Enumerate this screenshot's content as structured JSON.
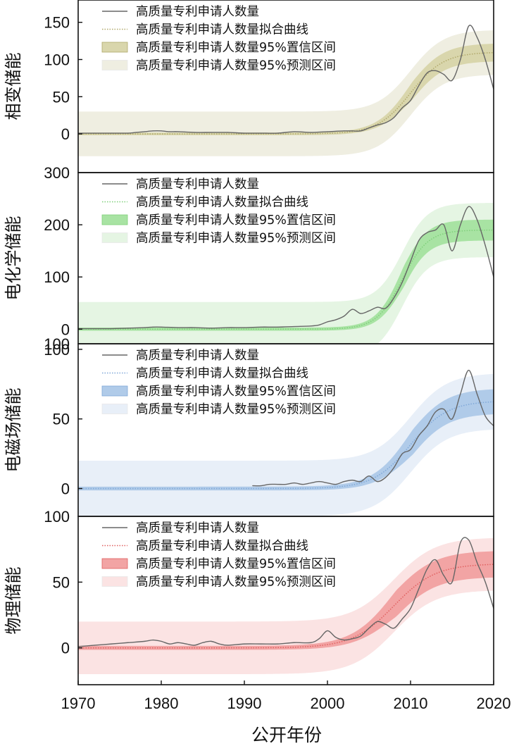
{
  "figure": {
    "xlabel": "公开年份",
    "x_ticks": [
      1970,
      1980,
      1990,
      2000,
      2010,
      2020
    ],
    "xlim": [
      1970,
      2020
    ]
  },
  "legend_labels": [
    "高质量专利申请人数量",
    "高质量专利申请人数量拟合曲线",
    "高质量专利申请人数量95%置信区间",
    "高质量专利申请人数量95%预测区间"
  ],
  "chart_data": [
    {
      "type": "line",
      "ylabel": "相变储能",
      "ylim": [
        -52,
        180
      ],
      "y_ticks": [
        0,
        50,
        100,
        150
      ],
      "legend_position": "top-left",
      "colors": {
        "fit": "#b0a86a",
        "ci": "#d9d6ac",
        "pi": "#efeee1"
      },
      "fit": {
        "L": 110,
        "k": 0.5,
        "x0": 2010
      },
      "ci_halfwidth": 12,
      "pi_halfwidth": 30,
      "series": [
        {
          "name": "高质量专利申请人数量",
          "x": [
            1970,
            1972,
            1974,
            1976,
            1977,
            1978,
            1979,
            1980,
            1981,
            1982,
            1984,
            1986,
            1988,
            1990,
            1992,
            1994,
            1996,
            1998,
            2000,
            2002,
            2003,
            2004,
            2005,
            2006,
            2007,
            2008,
            2009,
            2010,
            2011,
            2012,
            2013,
            2014,
            2015,
            2016,
            2017,
            2018,
            2019,
            2020
          ],
          "values": [
            1,
            1,
            1,
            1,
            2,
            3,
            4,
            4,
            3,
            3,
            2,
            2,
            2,
            1,
            1,
            1,
            3,
            2,
            3,
            4,
            4,
            4,
            8,
            12,
            15,
            22,
            35,
            45,
            65,
            82,
            85,
            80,
            72,
            100,
            145,
            130,
            100,
            60
          ]
        }
      ]
    },
    {
      "type": "line",
      "ylabel": "电化学储能",
      "ylim": [
        -28,
        300
      ],
      "y_ticks": [
        0,
        100,
        200
      ],
      "top_tick": 300,
      "legend_position": "top-left",
      "colors": {
        "fit": "#7fd07a",
        "ci": "#a8e3a3",
        "pi": "#e5f5e3"
      },
      "fit": {
        "L": 190,
        "k": 0.65,
        "x0": 2009
      },
      "ci_halfwidth": 20,
      "pi_halfwidth": 52,
      "series": [
        {
          "name": "高质量专利申请人数量",
          "x": [
            1970,
            1972,
            1974,
            1976,
            1978,
            1979,
            1980,
            1982,
            1984,
            1986,
            1988,
            1990,
            1992,
            1994,
            1996,
            1998,
            1999,
            2000,
            2001,
            2002,
            2003,
            2004,
            2005,
            2006,
            2007,
            2008,
            2009,
            2010,
            2011,
            2012,
            2013,
            2014,
            2015,
            2016,
            2017,
            2018,
            2019,
            2020
          ],
          "values": [
            1,
            1,
            1,
            2,
            3,
            4,
            4,
            3,
            3,
            2,
            3,
            3,
            4,
            4,
            5,
            6,
            8,
            14,
            18,
            25,
            38,
            30,
            35,
            42,
            40,
            60,
            90,
            130,
            170,
            185,
            190,
            200,
            150,
            200,
            235,
            210,
            160,
            100
          ]
        }
      ]
    },
    {
      "type": "line",
      "ylabel": "电磁场储能",
      "ylim": [
        -20,
        104
      ],
      "y_ticks": [
        0,
        50,
        100
      ],
      "top_tick": 100,
      "legend_position": "top-left",
      "colors": {
        "fit": "#7fa8d8",
        "ci": "#b0cbe9",
        "pi": "#e8eff8"
      },
      "fit": {
        "L": 63,
        "k": 0.45,
        "x0": 2010
      },
      "ci_halfwidth": 9,
      "pi_halfwidth": 20,
      "series": [
        {
          "name": "高质量专利申请人数量",
          "x": [
            1991,
            1992,
            1993,
            1994,
            1995,
            1996,
            1997,
            1998,
            1999,
            2000,
            2001,
            2002,
            2003,
            2004,
            2005,
            2006,
            2007,
            2008,
            2009,
            2010,
            2011,
            2012,
            2013,
            2014,
            2015,
            2016,
            2017,
            2018,
            2019,
            2020
          ],
          "values": [
            2,
            2,
            3,
            3,
            3,
            4,
            3,
            4,
            5,
            4,
            3,
            5,
            6,
            5,
            9,
            5,
            8,
            15,
            25,
            28,
            38,
            45,
            55,
            57,
            50,
            68,
            85,
            68,
            52,
            45
          ]
        }
      ]
    },
    {
      "type": "line",
      "ylabel": "物理储能",
      "ylim": [
        -28,
        100
      ],
      "y_ticks": [
        0,
        50
      ],
      "top_tick": 100,
      "legend_position": "top-left",
      "colors": {
        "fit": "#e06060",
        "ci": "#f2a4a4",
        "pi": "#fbe3e3"
      },
      "fit": {
        "L": 64,
        "k": 0.4,
        "x0": 2008
      },
      "ci_halfwidth": 10,
      "pi_halfwidth": 20,
      "series": [
        {
          "name": "高质量专利申请人数量",
          "x": [
            1970,
            1972,
            1974,
            1976,
            1978,
            1979,
            1980,
            1981,
            1982,
            1983,
            1984,
            1985,
            1986,
            1987,
            1988,
            1990,
            1992,
            1994,
            1996,
            1998,
            1999,
            2000,
            2001,
            2002,
            2003,
            2004,
            2005,
            2006,
            2007,
            2008,
            2009,
            2010,
            2011,
            2012,
            2013,
            2014,
            2015,
            2016,
            2017,
            2018,
            2019,
            2020
          ],
          "values": [
            1,
            2,
            3,
            4,
            5,
            6,
            5,
            3,
            4,
            3,
            2,
            4,
            5,
            3,
            2,
            3,
            3,
            3,
            4,
            4,
            7,
            13,
            8,
            6,
            7,
            9,
            15,
            20,
            18,
            15,
            22,
            30,
            45,
            60,
            67,
            55,
            50,
            80,
            82,
            65,
            50,
            30
          ]
        }
      ]
    }
  ]
}
